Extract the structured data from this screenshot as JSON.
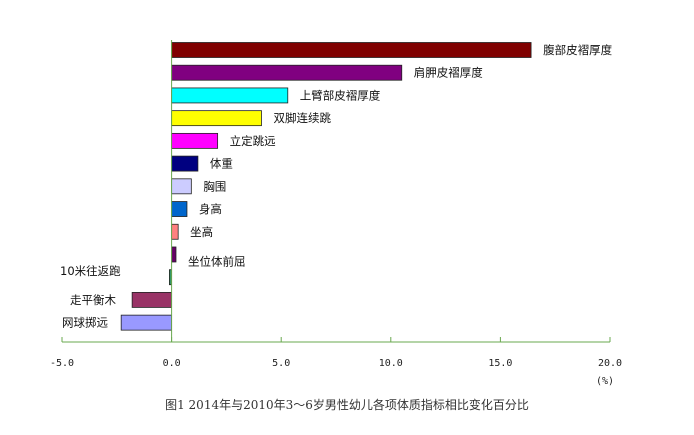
{
  "chart_data": {
    "type": "bar",
    "orientation": "horizontal",
    "title": "图1  2014年与2010年3～6岁男性幼儿各项体质指标相比变化百分比",
    "xlabel": "(%)",
    "ylabel": "",
    "xlim": [
      -5.0,
      20.0
    ],
    "xticks": [
      "-5.0",
      "0.0",
      "5.0",
      "10.0",
      "15.0",
      "20.0"
    ],
    "grid": false,
    "categories": [
      "腹部皮褶厚度",
      "肩胛皮褶厚度",
      "上臂部皮褶厚度",
      "双脚连续跳",
      "立定跳远",
      "体重",
      "胸围",
      "身高",
      "坐高",
      "坐位体前屈",
      "10米往返跑",
      "走平衡木",
      "网球掷远"
    ],
    "values": [
      16.4,
      10.5,
      5.3,
      4.1,
      2.1,
      1.2,
      0.9,
      0.7,
      0.3,
      0.2,
      -0.1,
      -1.8,
      -2.3
    ],
    "colors": [
      "#800000",
      "#800080",
      "#00FFFF",
      "#FFFF00",
      "#FF00FF",
      "#000080",
      "#CCCCFF",
      "#0066CC",
      "#FF8080",
      "#660066",
      "#339966",
      "#993366",
      "#9999FF"
    ],
    "axis_color": "#6aa84f"
  }
}
